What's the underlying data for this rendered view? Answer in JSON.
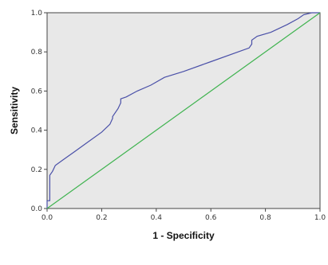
{
  "chart_data": {
    "type": "line",
    "xlabel": "1 - Specificity",
    "ylabel": "Sensitivity",
    "xlim": [
      0,
      1
    ],
    "ylim": [
      0,
      1
    ],
    "x_ticks": [
      "0.0",
      "0.2",
      "0.4",
      "0.6",
      "0.8",
      "1.0"
    ],
    "y_ticks": [
      "0.0",
      "0.2",
      "0.4",
      "0.6",
      "0.8",
      "1.0"
    ],
    "grid": false,
    "legend": "none",
    "background": "#e8e8e8",
    "series": [
      {
        "color": "#4a50a8",
        "x": [
          0.0,
          0.0,
          0.01,
          0.01,
          0.02,
          0.03,
          0.06,
          0.1,
          0.15,
          0.2,
          0.23,
          0.24,
          0.24,
          0.26,
          0.27,
          0.27,
          0.29,
          0.33,
          0.38,
          0.43,
          0.5,
          0.6,
          0.7,
          0.74,
          0.75,
          0.75,
          0.77,
          0.82,
          0.88,
          0.92,
          0.94,
          0.97,
          1.0
        ],
        "y": [
          0.0,
          0.04,
          0.04,
          0.17,
          0.19,
          0.22,
          0.25,
          0.29,
          0.34,
          0.39,
          0.43,
          0.46,
          0.47,
          0.51,
          0.54,
          0.56,
          0.57,
          0.6,
          0.63,
          0.67,
          0.7,
          0.75,
          0.8,
          0.82,
          0.84,
          0.86,
          0.88,
          0.9,
          0.94,
          0.97,
          0.99,
          1.0,
          1.0
        ]
      },
      {
        "color": "#3fb34f",
        "x": [
          0,
          1
        ],
        "y": [
          0,
          1
        ]
      }
    ]
  }
}
